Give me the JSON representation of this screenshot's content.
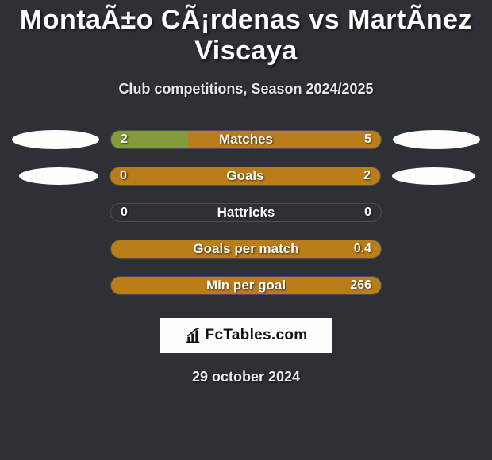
{
  "colors": {
    "background": "#2d3035",
    "text": "#fefefe",
    "ellipse": "#fefefe",
    "left_fill": "#839b3a",
    "right_fill": "#ba7e19",
    "bar_border": "rgba(255,255,255,0.15)"
  },
  "header": {
    "title": "MontaÃ±o CÃ¡rdenas vs MartÃ­nez Viscaya",
    "subtitle": "Club competitions, Season 2024/2025"
  },
  "stats": [
    {
      "label": "Matches",
      "left_value": "2",
      "right_value": "5",
      "left_pct": 28.5,
      "right_pct": 71.5,
      "show_left_ellipse": true,
      "show_right_ellipse": true,
      "ellipse_variant": 1
    },
    {
      "label": "Goals",
      "left_value": "0",
      "right_value": "2",
      "left_pct": 0,
      "right_pct": 100,
      "show_left_ellipse": true,
      "show_right_ellipse": true,
      "ellipse_variant": 2
    },
    {
      "label": "Hattricks",
      "left_value": "0",
      "right_value": "0",
      "left_pct": 0,
      "right_pct": 0,
      "show_left_ellipse": false,
      "show_right_ellipse": false,
      "ellipse_variant": 1
    },
    {
      "label": "Goals per match",
      "left_value": "",
      "right_value": "0.4",
      "left_pct": 0,
      "right_pct": 100,
      "show_left_ellipse": false,
      "show_right_ellipse": false,
      "ellipse_variant": 1
    },
    {
      "label": "Min per goal",
      "left_value": "",
      "right_value": "266",
      "left_pct": 0,
      "right_pct": 100,
      "show_left_ellipse": false,
      "show_right_ellipse": false,
      "ellipse_variant": 1
    }
  ],
  "footer": {
    "logo_text": "FcTables.com",
    "date": "29 october 2024"
  }
}
